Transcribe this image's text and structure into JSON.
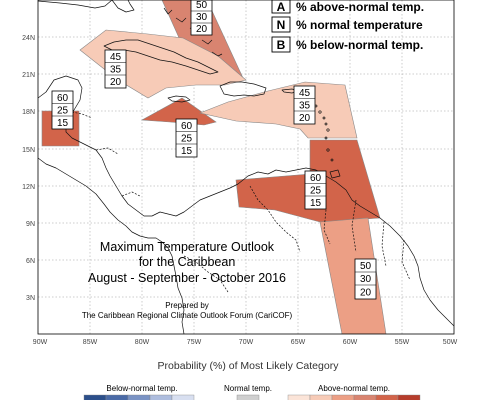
{
  "title": {
    "line1": "Maximum Temperature Outlook",
    "line2": "for the Caribbean",
    "line3": "August - September - October 2016",
    "prepared_by": "Prepared by",
    "forum": "The Caribbean Regional Climate Outlook Forum (CariCOF)"
  },
  "legend_key": [
    {
      "letter": "A",
      "text": "% above-normal temp."
    },
    {
      "letter": "N",
      "text": "% normal temperature"
    },
    {
      "letter": "B",
      "text": "% below-normal temp."
    }
  ],
  "latitude_labels": [
    "24N",
    "21N",
    "18N",
    "15N",
    "12N",
    "9N",
    "6N",
    "3N"
  ],
  "longitude_labels": [
    "90W",
    "85W",
    "80W",
    "75W",
    "70W",
    "65W",
    "60W",
    "55W",
    "50W"
  ],
  "regions": [
    {
      "name": "bahamas",
      "probabilities": [
        "50",
        "30",
        "20"
      ],
      "fill": "#d98470"
    },
    {
      "name": "cuba-jamaica",
      "probabilities": [
        "45",
        "35",
        "20"
      ],
      "fill": "#f7cbb7"
    },
    {
      "name": "belize",
      "probabilities": [
        "60",
        "25",
        "15"
      ],
      "fill": "#d2644a"
    },
    {
      "name": "central-caribbean",
      "probabilities": [
        "60",
        "25",
        "15"
      ],
      "fill": "#d2644a"
    },
    {
      "name": "eastern-caribbean",
      "probabilities": [
        "45",
        "35",
        "20"
      ],
      "fill": "#f7cbb7"
    },
    {
      "name": "southern-caribbean",
      "probabilities": [
        "60",
        "25",
        "15"
      ],
      "fill": "#d2644a"
    },
    {
      "name": "guianas",
      "probabilities": [
        "50",
        "30",
        "20"
      ],
      "fill": "#ec9f85"
    }
  ],
  "probability_bar": {
    "title": "Probability (%) of Most Likely Category",
    "below_label": "Below-normal temp.",
    "normal_label": "Normal temp.",
    "above_label": "Above-normal temp.",
    "below_colors": [
      "#2c4f8a",
      "#4a6aa6",
      "#7a93c4",
      "#aebdde",
      "#d8dff0"
    ],
    "normal_colors": [
      "#cfcfcf"
    ],
    "above_colors": [
      "#fbe4d8",
      "#f7cbb7",
      "#ec9f85",
      "#d98470",
      "#d2644a",
      "#b63d2c"
    ]
  }
}
